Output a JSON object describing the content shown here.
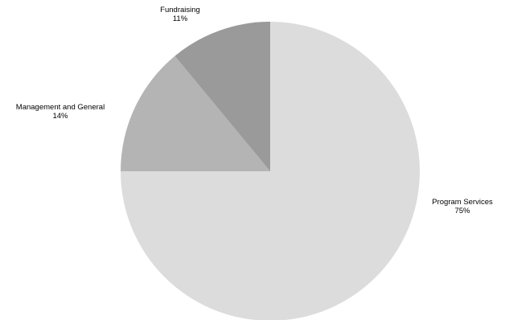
{
  "chart_data": {
    "type": "pie",
    "title": "",
    "slices": [
      {
        "label": "Program Services",
        "value": 75,
        "value_label": "75%",
        "color": "#dcdcdc"
      },
      {
        "label": "Management and General",
        "value": 14,
        "value_label": "14%",
        "color": "#b4b4b4"
      },
      {
        "label": "Fundraising",
        "value": 11,
        "value_label": "11%",
        "color": "#9a9a9a"
      }
    ],
    "start_angle_deg": 0,
    "direction": "clockwise",
    "legend": "none",
    "label_position": "outside"
  }
}
